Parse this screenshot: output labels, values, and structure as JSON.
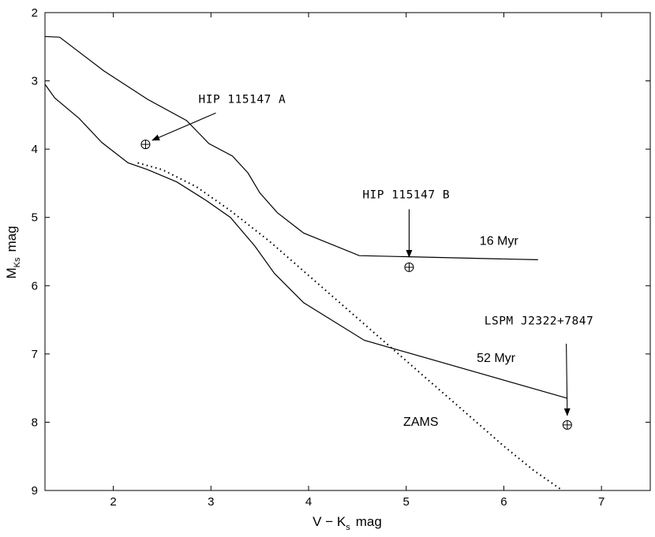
{
  "chart_data": {
    "type": "line",
    "title": "",
    "xlabel": {
      "main": "V − K",
      "sub": "s",
      "unit": "mag"
    },
    "ylabel": {
      "main": "M",
      "sub": "Ks",
      "unit": "mag"
    },
    "xlim": [
      1.3,
      7.5
    ],
    "ylim": [
      9,
      2
    ],
    "y_inverted": true,
    "x_ticks": [
      2,
      3,
      4,
      5,
      6,
      7
    ],
    "y_ticks": [
      2,
      3,
      4,
      5,
      6,
      7,
      8,
      9
    ],
    "grid": false,
    "legend": "none",
    "series": [
      {
        "name": "16 Myr",
        "style": "solid",
        "color": "#000000",
        "x": [
          1.3,
          1.45,
          1.9,
          2.35,
          2.75,
          2.98,
          3.22,
          3.38,
          3.5,
          3.68,
          3.95,
          4.52,
          6.35
        ],
        "y": [
          2.35,
          2.36,
          2.85,
          3.27,
          3.58,
          3.92,
          4.1,
          4.35,
          4.64,
          4.93,
          5.23,
          5.56,
          5.62
        ]
      },
      {
        "name": "52 Myr",
        "style": "solid",
        "color": "#000000",
        "x": [
          1.3,
          1.4,
          1.65,
          1.88,
          2.15,
          2.35,
          2.65,
          2.95,
          3.2,
          3.45,
          3.65,
          3.95,
          4.57,
          6.65
        ],
        "y": [
          3.05,
          3.25,
          3.55,
          3.9,
          4.2,
          4.3,
          4.48,
          4.75,
          5.0,
          5.42,
          5.82,
          6.25,
          6.8,
          7.65
        ]
      },
      {
        "name": "ZAMS",
        "style": "dotted",
        "color": "#000000",
        "x": [
          2.25,
          2.5,
          2.85,
          3.2,
          3.6,
          4.0,
          4.4,
          4.8,
          5.2,
          5.6,
          6.0,
          6.3,
          6.6
        ],
        "y": [
          4.2,
          4.3,
          4.55,
          4.9,
          5.35,
          5.85,
          6.35,
          6.85,
          7.35,
          7.85,
          8.35,
          8.7,
          9.0
        ]
      }
    ],
    "series_labels": [
      {
        "text": "16 Myr",
        "x": 5.95,
        "y": 5.4
      },
      {
        "text": "52 Myr",
        "x": 5.92,
        "y": 7.12
      },
      {
        "text": "ZAMS",
        "x": 5.15,
        "y": 8.05
      }
    ],
    "points": [
      {
        "name": "HIP 115147 A",
        "x": 2.33,
        "y": 3.93,
        "symbol": "circle-plus"
      },
      {
        "name": "HIP 115147 B",
        "x": 5.03,
        "y": 5.73,
        "symbol": "circle-plus"
      },
      {
        "name": "LSPM J2322+7847",
        "x": 6.65,
        "y": 8.04,
        "symbol": "circle-plus"
      }
    ],
    "annotations": [
      {
        "text": "HIP 115147 A",
        "text_x": 3.32,
        "text_y": 3.32,
        "from_x": 3.05,
        "from_y": 3.47,
        "to_x": 2.4,
        "to_y": 3.87
      },
      {
        "text": "HIP 115147 B",
        "text_x": 5.0,
        "text_y": 4.72,
        "from_x": 5.03,
        "from_y": 4.88,
        "to_x": 5.03,
        "to_y": 5.58
      },
      {
        "text": "LSPM J2322+7847",
        "text_x": 6.36,
        "text_y": 6.57,
        "from_x": 6.64,
        "from_y": 6.85,
        "to_x": 6.65,
        "to_y": 7.9
      }
    ]
  }
}
